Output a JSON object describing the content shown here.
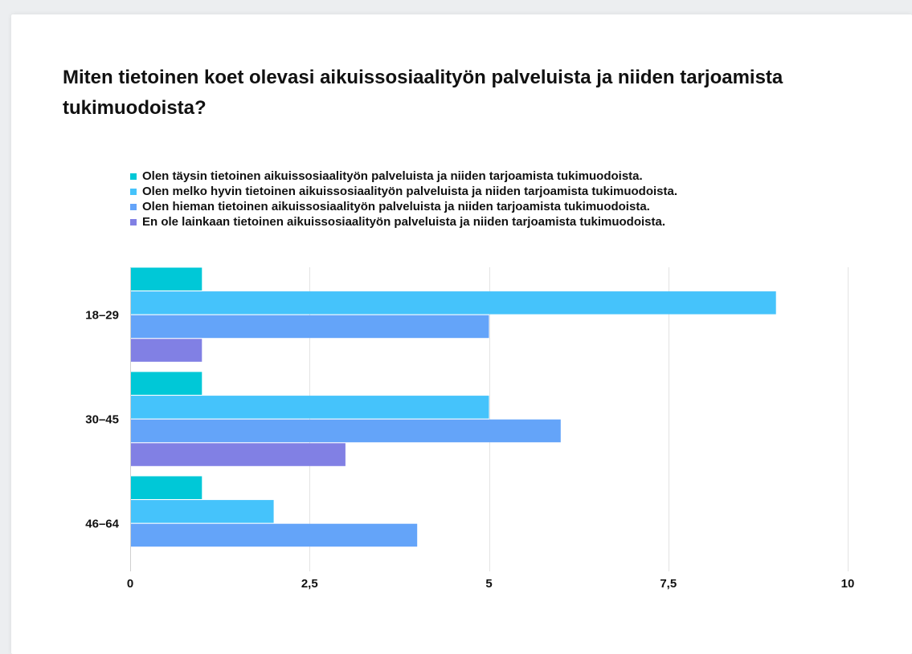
{
  "chart_data": {
    "type": "bar",
    "orientation": "horizontal",
    "title": "Miten tietoinen koet olevasi aikuissosiaalityön palveluista ja niiden tarjoamista tukimuodoista?",
    "categories": [
      "18–29",
      "30–45",
      "46–64"
    ],
    "series": [
      {
        "name": "Olen täysin tietoinen aikuissosiaalityön palveluista ja niiden tarjoamista tukimuodoista.",
        "color": "#00c8d7",
        "values": [
          1,
          1,
          1
        ]
      },
      {
        "name": "Olen melko hyvin tietoinen aikuissosiaalityön palveluista ja niiden tarjoamista tukimuodoista.",
        "color": "#45c3fb",
        "values": [
          9,
          5,
          2
        ]
      },
      {
        "name": "Olen hieman tietoinen aikuissosiaalityön palveluista ja niiden tarjoamista tukimuodoista.",
        "color": "#64a4f9",
        "values": [
          5,
          6,
          4
        ]
      },
      {
        "name": "En ole lainkaan tietoinen aikuissosiaalityön palveluista ja niiden tarjoamista tukimuodoista.",
        "color": "#8180e4",
        "values": [
          1,
          3,
          0
        ]
      }
    ],
    "xlim": [
      0,
      10
    ],
    "xticks": [
      0,
      2.5,
      5,
      7.5,
      10
    ],
    "xtick_labels": [
      "0",
      "2,5",
      "5",
      "7,5",
      "10"
    ],
    "grid": true,
    "legend_position": "top"
  }
}
